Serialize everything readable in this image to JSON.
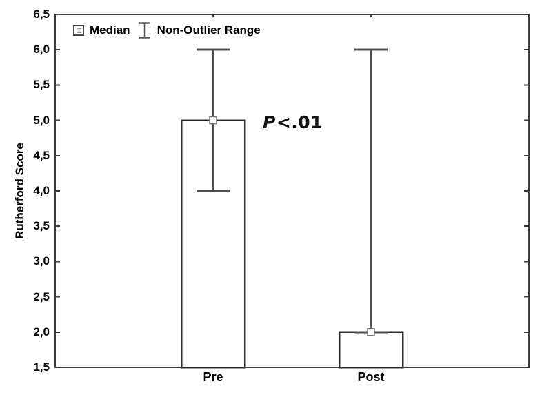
{
  "chart_data": {
    "type": "bar",
    "title": "",
    "xlabel": "",
    "ylabel": "Rutherford Score",
    "categories": [
      "Pre",
      "Post"
    ],
    "series": [
      {
        "name": "Median",
        "values": [
          5.0,
          2.0
        ]
      },
      {
        "name": "Non-Outlier Range",
        "low": [
          4.0,
          2.0
        ],
        "high": [
          6.0,
          6.0
        ]
      }
    ],
    "ylim": [
      1.5,
      6.5
    ],
    "ytick_step": 0.5,
    "ytick_labels": [
      "1,5",
      "2,0",
      "2,5",
      "3,0",
      "3,5",
      "4,0",
      "4,5",
      "5,0",
      "5,5",
      "6,0",
      "6,5"
    ],
    "grid": false,
    "legend": {
      "position": "top-left-inside",
      "items": [
        {
          "label": "Median",
          "marker": "square-marker-icon"
        },
        {
          "label": "Non-Outlier Range",
          "marker": "whisker-range-icon"
        }
      ]
    },
    "annotation": {
      "italic": "P",
      "text": "<.01"
    },
    "colors": {
      "background": "#ffffff",
      "frame": "#3c3c3c",
      "whisker": "#4d4d4d",
      "bar_border": "#2f2f2f",
      "bar_fill": "#ffffff",
      "marker_border": "#757575",
      "marker_fill": "#ffffff",
      "text": "#000000"
    }
  }
}
